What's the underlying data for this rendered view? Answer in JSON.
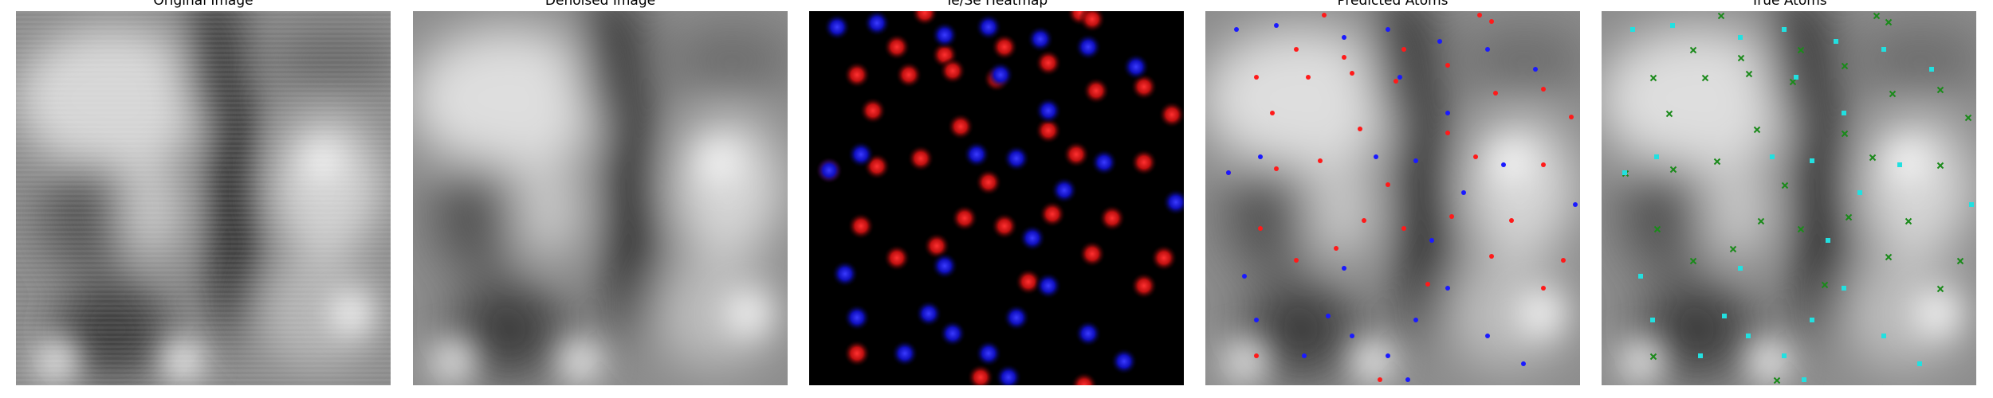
{
  "panels": [
    {
      "id": "original",
      "title": "Original Image"
    },
    {
      "id": "denoised",
      "title": "Denoised Image"
    },
    {
      "id": "heatmap",
      "title": "Te/Se Heatmap"
    },
    {
      "id": "predicted",
      "title": "Predicted Atoms"
    },
    {
      "id": "true",
      "title": "True Atoms"
    }
  ],
  "colors": {
    "heatmap_red": "#ff2020",
    "heatmap_blue": "#2a2aff",
    "pred_red": "#ff1a1a",
    "pred_blue": "#1a1aff",
    "true_cyan": "#22e0e0",
    "true_green": "#1a8a1a"
  }
}
